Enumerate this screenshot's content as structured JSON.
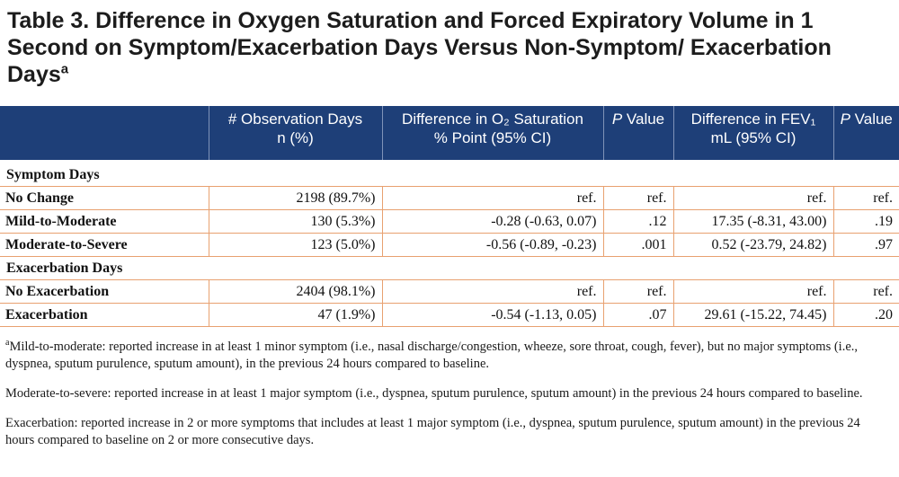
{
  "title": {
    "main": "Table 3. Difference in Oxygen Saturation and Forced Expiratory Volume in 1 Second on Symptom/Exacerbation Days Versus Non-Symptom/ Exacerbation Days",
    "sup": "a"
  },
  "header": {
    "col1": "",
    "col2_line1": "# Observation Days",
    "col2_line2": "n (%)",
    "col3_line1": "Difference in O₂ Saturation",
    "col3_line2": "% Point (95% CI)",
    "col4_italic": "P",
    "col4_rest": " Value",
    "col5_line1": "Difference in FEV₁",
    "col5_line2": "mL (95% CI)",
    "col6_italic": "P",
    "col6_rest": " Value"
  },
  "sections": [
    {
      "heading": "Symptom Days",
      "rows": [
        {
          "label": "No Change",
          "days": "2198 (89.7%)",
          "o2": "ref.",
          "p1": "ref.",
          "fev": "ref.",
          "p2": "ref."
        },
        {
          "label": "Mild-to-Moderate",
          "days": "130 (5.3%)",
          "o2": "-0.28 (-0.63, 0.07)",
          "p1": ".12",
          "fev": "17.35 (-8.31, 43.00)",
          "p2": ".19"
        },
        {
          "label": "Moderate-to-Severe",
          "days": "123 (5.0%)",
          "o2": "-0.56 (-0.89, -0.23)",
          "p1": ".001",
          "fev": "0.52 (-23.79, 24.82)",
          "p2": ".97"
        }
      ]
    },
    {
      "heading": "Exacerbation Days",
      "rows": [
        {
          "label": "No Exacerbation",
          "days": "2404 (98.1%)",
          "o2": "ref.",
          "p1": "ref.",
          "fev": "ref.",
          "p2": "ref."
        },
        {
          "label": "Exacerbation",
          "days": "47 (1.9%)",
          "o2": "-0.54 (-1.13, 0.05)",
          "p1": ".07",
          "fev": "29.61 (-15.22, 74.45)",
          "p2": ".20"
        }
      ]
    }
  ],
  "footnotes": {
    "sup": "a",
    "note1": "Mild-to-moderate: reported increase in at least 1 minor symptom (i.e., nasal discharge/congestion, wheeze, sore throat, cough, fever), but no major symptoms (i.e., dyspnea, sputum purulence, sputum amount), in the previous 24 hours compared to baseline.",
    "note2": "Moderate-to-severe: reported increase in at least 1 major symptom (i.e., dyspnea, sputum purulence, sputum amount) in the previous 24 hours compared to baseline.",
    "note3": "Exacerbation: reported increase in 2 or more symptoms that includes at least 1 major symptom (i.e., dyspnea, sputum purulence, sputum amount) in the previous 24 hours compared to baseline on 2 or more consecutive days."
  },
  "colors": {
    "header_bg": "#1e3f78",
    "rule": "#e8a170"
  }
}
